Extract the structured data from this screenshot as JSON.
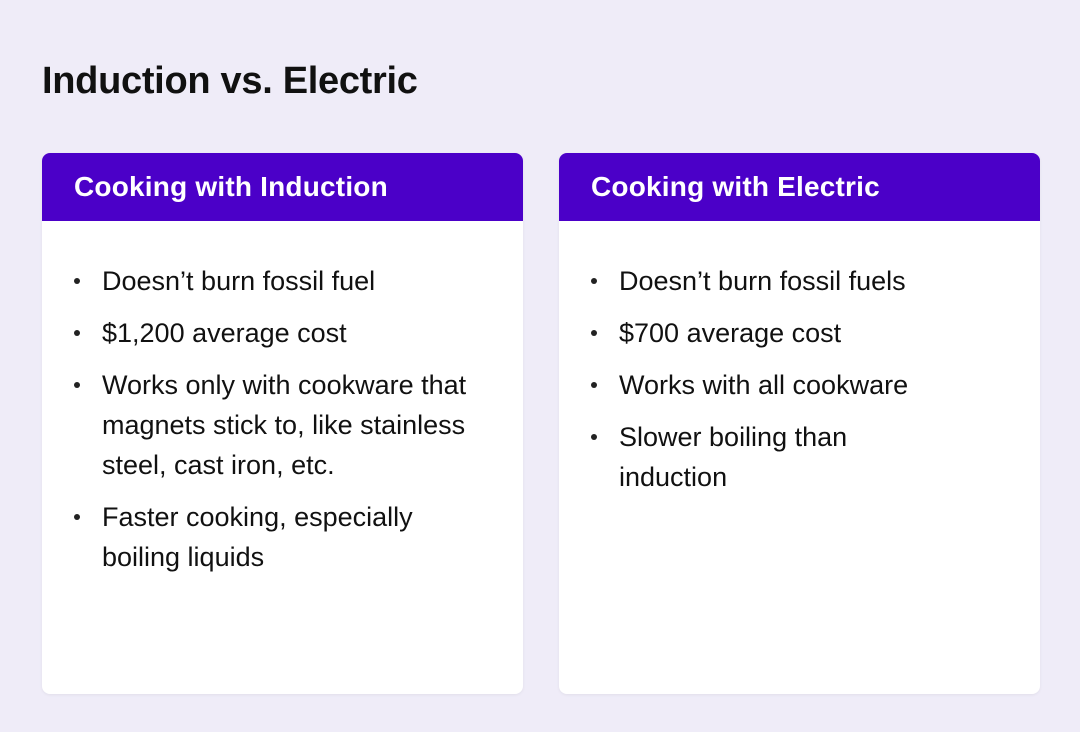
{
  "title": "Induction vs. Electric",
  "colors": {
    "header": "#4b00c8",
    "background": "#efecf8"
  },
  "cards": [
    {
      "heading": "Cooking with Induction",
      "items": [
        "Doesn’t burn fossil fuel",
        "$1,200 average cost",
        "Works only with cookware that magnets stick to, like stainless steel, cast iron, etc.",
        "Faster cooking, especially boiling liquids"
      ]
    },
    {
      "heading": "Cooking with Electric",
      "items": [
        "Doesn’t burn fossil fuels",
        "$700 average cost",
        "Works with all cookware",
        "Slower boiling than induction"
      ]
    }
  ]
}
